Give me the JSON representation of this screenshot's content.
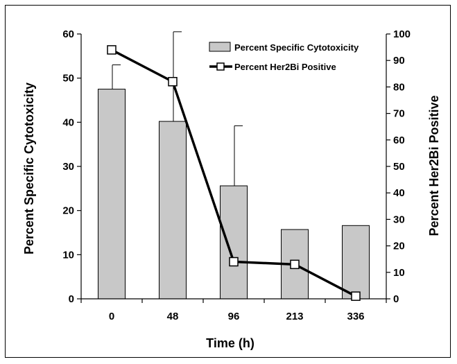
{
  "chart_data": {
    "type": "bar",
    "categories": [
      "0",
      "48",
      "96",
      "213",
      "336"
    ],
    "xlabel": "Time (h)",
    "ylabel_left": "Percent Specific Cytotoxicity",
    "ylabel_right": "Percent Her2Bi Positive",
    "ylim_left": [
      0,
      60
    ],
    "ylim_right": [
      0,
      100
    ],
    "yticks_left": [
      "0",
      "10",
      "20",
      "30",
      "40",
      "50",
      "60"
    ],
    "yticks_right": [
      "0",
      "10",
      "20",
      "30",
      "40",
      "50",
      "60",
      "70",
      "80",
      "90",
      "100"
    ],
    "series": [
      {
        "name": "Percent Specific Cytotoxicity",
        "type": "bar",
        "axis": "left",
        "values": [
          47.5,
          40.2,
          25.6,
          15.7,
          16.6
        ],
        "error_upper": [
          53.0,
          60.5,
          39.2,
          null,
          null
        ],
        "color": "#c8c8c8"
      },
      {
        "name": "Percent Her2Bi Positive",
        "type": "line",
        "axis": "right",
        "values": [
          94,
          82,
          14,
          13,
          1
        ],
        "color": "#000000"
      }
    ],
    "legend_position": "top-right",
    "grid": false
  }
}
